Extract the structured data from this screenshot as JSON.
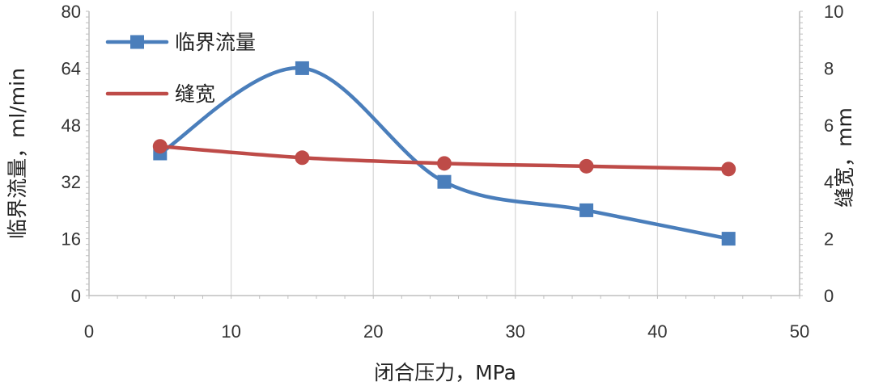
{
  "chart_data": {
    "type": "line",
    "xlabel": "闭合压力，MPa",
    "ylabel_left": "临界流量，ml/min",
    "ylabel_right": "缝宽，mm",
    "x_ticks": [
      0,
      10,
      20,
      30,
      40,
      50
    ],
    "y_left_ticks": [
      0,
      16,
      32,
      48,
      64,
      80
    ],
    "y_right_ticks": [
      0,
      2,
      4,
      6,
      8,
      10
    ],
    "xlim": [
      0,
      50
    ],
    "ylim_left": [
      0,
      80
    ],
    "ylim_right": [
      0,
      10
    ],
    "grid": "vertical",
    "legend_position": "top-left",
    "series": [
      {
        "name": "临界流量",
        "axis": "left",
        "marker": "square",
        "smooth": true,
        "color": "#4a7ebb",
        "x": [
          5,
          15,
          25,
          35,
          45
        ],
        "y": [
          40,
          64,
          32,
          24,
          16
        ]
      },
      {
        "name": "缝宽",
        "axis": "right",
        "marker": "circle",
        "smooth": true,
        "color": "#be4b48",
        "x": [
          5,
          15,
          25,
          35,
          45
        ],
        "y": [
          5.25,
          4.85,
          4.65,
          4.55,
          4.45
        ]
      }
    ]
  }
}
